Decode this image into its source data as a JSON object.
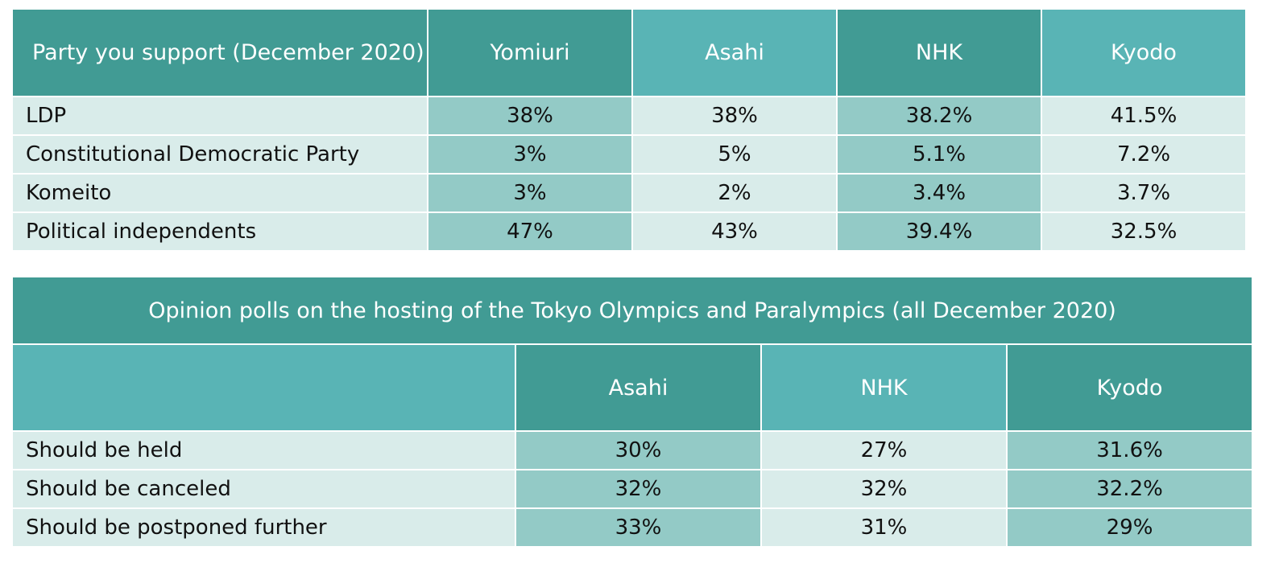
{
  "colors": {
    "header_dark": "#419b94",
    "header_light": "#59b4b5",
    "cell_dark": "#93cac6",
    "cell_light": "#d9ecea",
    "text": "#111111",
    "header_text": "#ffffff"
  },
  "chart_data": [
    {
      "type": "table",
      "columns": [
        "Party you support (December 2020)",
        "Yomiuri",
        "Asahi",
        "NHK",
        "Kyodo"
      ],
      "rows": [
        {
          "label": "LDP",
          "values": [
            "38%",
            "38%",
            "38.2%",
            "41.5%"
          ]
        },
        {
          "label": "Constitutional Democratic Party",
          "values": [
            "3%",
            "5%",
            "5.1%",
            "7.2%"
          ]
        },
        {
          "label": "Komeito",
          "values": [
            "3%",
            "2%",
            "3.4%",
            "3.7%"
          ]
        },
        {
          "label": "Political independents",
          "values": [
            "47%",
            "43%",
            "39.4%",
            "32.5%"
          ]
        }
      ]
    },
    {
      "type": "table",
      "title": "Opinion polls on the hosting of the Tokyo Olympics and Paralympics (all December 2020)",
      "columns": [
        "",
        "Asahi",
        "NHK",
        "Kyodo"
      ],
      "rows": [
        {
          "label": "Should be held",
          "values": [
            "30%",
            "27%",
            "31.6%"
          ]
        },
        {
          "label": "Should be canceled",
          "values": [
            "32%",
            "32%",
            "32.2%"
          ]
        },
        {
          "label": "Should be postponed further",
          "values": [
            "33%",
            "31%",
            "29%"
          ]
        }
      ]
    }
  ]
}
